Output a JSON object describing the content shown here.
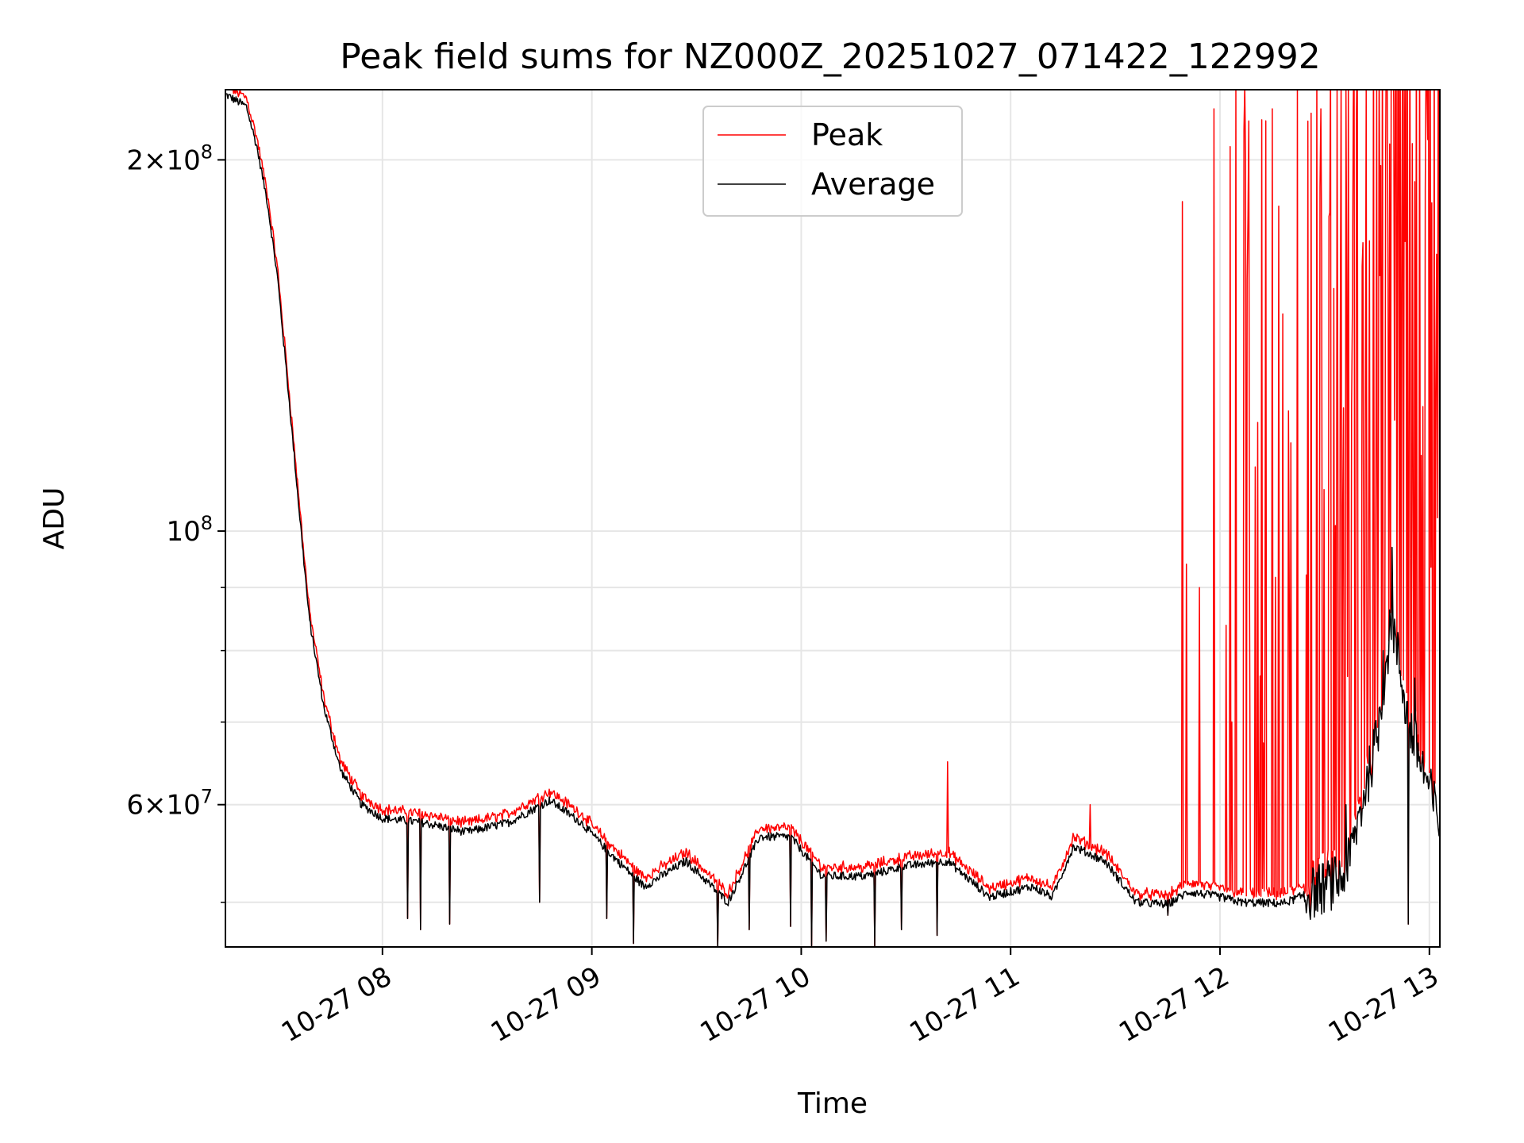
{
  "chart_data": {
    "type": "line",
    "title": "Peak field sums for NZ000Z_20251027_071422_122992",
    "xlabel": "Time",
    "ylabel": "ADU",
    "yscale": "log",
    "ylim": [
      46000000,
      228000000
    ],
    "x_unit": "hours since 10-27 00:00",
    "xlim": [
      7.25,
      13.05
    ],
    "x_ticks": [
      {
        "value": 8,
        "label": "10-27 08"
      },
      {
        "value": 9,
        "label": "10-27 09"
      },
      {
        "value": 10,
        "label": "10-27 10"
      },
      {
        "value": 11,
        "label": "10-27 11"
      },
      {
        "value": 12,
        "label": "10-27 12"
      },
      {
        "value": 13,
        "label": "10-27 13"
      }
    ],
    "y_ticks": [
      {
        "value": 200000000,
        "mantissa": "2",
        "times": "×",
        "base": "10",
        "exp": "8"
      },
      {
        "value": 100000000,
        "mantissa": "",
        "times": "",
        "base": "10",
        "exp": "8"
      },
      {
        "value": 60000000,
        "mantissa": "6",
        "times": "×",
        "base": "10",
        "exp": "7"
      }
    ],
    "y_minor_ticks": [
      50000000,
      70000000,
      80000000,
      90000000
    ],
    "grid": true,
    "legend": {
      "position": "upper-center"
    },
    "series": [
      {
        "name": "Peak",
        "color": "#ff0000",
        "x": [],
        "values": []
      },
      {
        "name": "Average",
        "color": "#000000",
        "x": [],
        "values": []
      }
    ],
    "approx_profile": {
      "note": "approximate curve read from the plot (hours, ADU)",
      "baseline": [
        [
          7.25,
          226000000
        ],
        [
          7.35,
          221000000
        ],
        [
          7.4,
          205000000
        ],
        [
          7.45,
          185000000
        ],
        [
          7.5,
          160000000
        ],
        [
          7.55,
          130000000
        ],
        [
          7.6,
          105000000
        ],
        [
          7.65,
          85000000
        ],
        [
          7.72,
          72000000
        ],
        [
          7.8,
          64000000
        ],
        [
          7.9,
          60000000
        ],
        [
          8.0,
          58500000
        ],
        [
          8.2,
          58000000
        ],
        [
          8.4,
          57000000
        ],
        [
          8.6,
          58000000
        ],
        [
          8.8,
          60500000
        ],
        [
          8.95,
          58000000
        ],
        [
          9.1,
          54500000
        ],
        [
          9.25,
          51500000
        ],
        [
          9.45,
          54000000
        ],
        [
          9.65,
          50000000
        ],
        [
          9.8,
          56500000
        ],
        [
          9.95,
          56500000
        ],
        [
          10.1,
          52500000
        ],
        [
          10.3,
          52500000
        ],
        [
          10.5,
          53500000
        ],
        [
          10.7,
          54000000
        ],
        [
          10.9,
          50500000
        ],
        [
          11.1,
          51500000
        ],
        [
          11.2,
          50500000
        ],
        [
          11.3,
          55500000
        ],
        [
          11.45,
          54000000
        ],
        [
          11.6,
          50000000
        ],
        [
          11.75,
          49800000
        ],
        [
          11.85,
          51000000
        ],
        [
          12.0,
          50500000
        ],
        [
          12.1,
          50000000
        ],
        [
          12.3,
          49900000
        ],
        [
          12.45,
          51000000
        ],
        [
          12.6,
          52500000
        ],
        [
          12.75,
          68000000
        ],
        [
          12.82,
          85000000
        ],
        [
          12.9,
          70000000
        ],
        [
          13.05,
          58000000
        ]
      ],
      "dips": [
        [
          8.12,
          48500000
        ],
        [
          8.18,
          47500000
        ],
        [
          8.32,
          48000000
        ],
        [
          8.75,
          50000000
        ],
        [
          9.07,
          48500000
        ],
        [
          9.2,
          46300000
        ],
        [
          9.6,
          46000000
        ],
        [
          9.75,
          47500000
        ],
        [
          9.95,
          47800000
        ],
        [
          10.05,
          46000000
        ],
        [
          10.12,
          46500000
        ],
        [
          10.35,
          46000000
        ],
        [
          10.48,
          47500000
        ],
        [
          10.65,
          47000000
        ],
        [
          11.75,
          48800000
        ],
        [
          12.9,
          48000000
        ]
      ],
      "peak_spikes": [
        [
          10.7,
          65000000
        ],
        [
          11.38,
          60000000
        ],
        [
          11.82,
          185000000
        ],
        [
          11.84,
          94000000
        ],
        [
          11.9,
          90000000
        ],
        [
          11.97,
          220000000
        ],
        [
          12.05,
          205000000
        ],
        [
          12.13,
          160000000
        ],
        [
          12.25,
          220000000
        ],
        [
          12.3,
          150000000
        ],
        [
          12.37,
          228000000
        ],
        [
          12.42,
          215000000
        ],
        [
          12.48,
          220000000
        ],
        [
          12.52,
          180000000
        ],
        [
          12.56,
          228000000
        ],
        [
          12.6,
          228000000
        ],
        [
          12.65,
          225000000
        ],
        [
          12.7,
          228000000
        ],
        [
          12.75,
          228000000
        ],
        [
          12.8,
          228000000
        ],
        [
          12.85,
          228000000
        ],
        [
          12.88,
          228000000
        ],
        [
          12.92,
          228000000
        ],
        [
          12.96,
          228000000
        ],
        [
          12.99,
          228000000
        ],
        [
          13.03,
          130000000
        ]
      ],
      "average_spikes": [
        [
          12.6,
          60000000
        ],
        [
          12.7,
          62000000
        ],
        [
          12.78,
          80000000
        ],
        [
          12.82,
          97000000
        ],
        [
          12.87,
          75000000
        ],
        [
          12.93,
          76000000
        ]
      ]
    }
  }
}
